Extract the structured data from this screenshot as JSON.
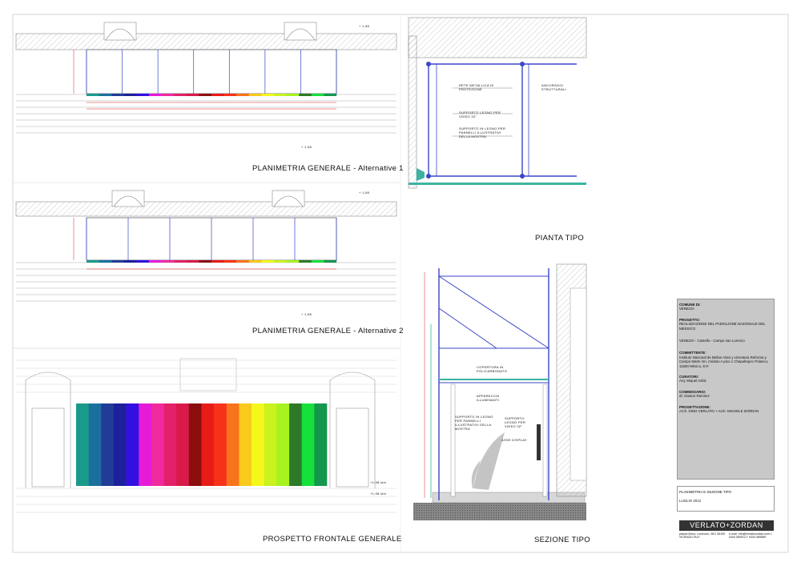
{
  "titles": {
    "alt1": "PLANIMETRIA  GENERALE - Alternative 1",
    "alt2": "PLANIMETRIA  GENERALE - Alternative 2",
    "pianta": "PIANTA  TIPO",
    "prospetto": "PROSPETTO FRONTALE GENERALE",
    "sezione": "SEZIONE TIPO"
  },
  "levels": {
    "l1a": "+ 1,08",
    "l1b": "+ 1,08",
    "l2a": "+ 1,08",
    "l2b": "+ 1,08",
    "p1": "+1,08 slm",
    "p2": "+1,08 slm"
  },
  "pianta_labels": {
    "rete": "RETE METALLICA DI PROTEZIONE",
    "supporto1": "SUPPORTO LEGNO PER VIDEO 32\"",
    "supporto2": "SUPPORTO IN LEGNO PER PANNELLI ILLUSTRATIVI DELLA MOSTRA",
    "ancoraggi": "ANCORAGGI STRUTTURALI"
  },
  "sezione_labels": {
    "copertura": "COPERTURA IN POLICARBONATO",
    "apparecchi": "APPARECCHI ILLUMINANTI",
    "supporto_pannelli": "SUPPORTO IN LEGNO PER PANNELLI ILLUSTRATIVI DELLA MOSTRA",
    "supporto_video": "SUPPORTO LEGNO PER VIDEO 32\"",
    "asse": "ASSE DISPLAY"
  },
  "titleblock": {
    "comune_h": "COMUNE DI:",
    "comune": "VENEZIA",
    "progetto_h": "PROGETTO:",
    "progetto": "REALIZZAZIONE DEL PADIGLIONE NAZIONALE DEL MESSICO",
    "luogo": "VENEZIA - Castello - Campo san Lorenzo",
    "committente_h": "COMMITTENTE:",
    "committente": "Instituto Nacional de Bellas Artes y Literatura Reforma y Campo Marte s/n, módulo A piso 1 Chapultepec Polanco,  11560 México,  D.F.",
    "curatori_h": "CURATORI:",
    "curatori": "Arq. Miquel Adrià",
    "commissario_h": "COMMISSARIO:",
    "commissario": "dr. Gaston Ramirez",
    "progettazione_h": "PROGETTAZIONE:",
    "progettazione": "Arch. DINO VERLATO + Arch. MICHELE ZORDAN",
    "tavola": "PLANIMETRIA E SEZIONE TIPO",
    "data": "LUGLIO 2012",
    "logo": "VERLATO+ZORDAN",
    "indirizzo": "piazza Mons. Lorenzon, 26/1  36100 VICENZA    ITALY",
    "contatti": "e-mail: info@verlatozordan.com  t. 0444 560912  f. 0444 089589"
  },
  "colors": {
    "stripes": [
      "#1a9a8a",
      "#1b6f9f",
      "#213c98",
      "#1d1f9c",
      "#3410e0",
      "#e51bd8",
      "#f02a9e",
      "#e3206a",
      "#d81a4a",
      "#8a0e0e",
      "#e81c17",
      "#f7321a",
      "#f7731c",
      "#f9c91c",
      "#f4f71c",
      "#c9f21e",
      "#a6f31f",
      "#2c7a28",
      "#15e03c",
      "#14964c"
    ]
  }
}
